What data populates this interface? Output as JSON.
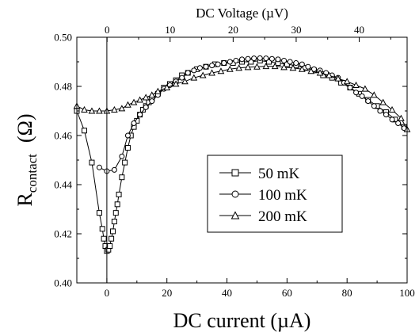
{
  "chart_data": {
    "type": "scatter",
    "xlabel": "DC current (µA)",
    "x2label": "DC Voltage (µV)",
    "ylabel_main": "R",
    "ylabel_sub": "contact",
    "ylabel_unit": "(Ω)",
    "xlim": [
      -10,
      100
    ],
    "x2lim": [
      -4.8,
      47.6
    ],
    "ylim": [
      0.4,
      0.5
    ],
    "x_ticks": [
      0,
      20,
      40,
      60,
      80,
      100
    ],
    "x_tick_labels": [
      "0",
      "20",
      "40",
      "60",
      "80",
      "100"
    ],
    "x2_ticks": [
      0,
      10,
      20,
      30,
      40
    ],
    "x2_tick_labels": [
      "0",
      "10",
      "20",
      "30",
      "40"
    ],
    "y_ticks": [
      0.4,
      0.42,
      0.44,
      0.46,
      0.48,
      0.5
    ],
    "y_tick_labels": [
      "0.40",
      "0.42",
      "0.44",
      "0.46",
      "0.48",
      "0.50"
    ],
    "zero_line_x": 0,
    "grid": false,
    "legend_position": "center",
    "series": [
      {
        "name": "50 mK",
        "marker": "square",
        "x": [
          -10,
          -7.5,
          -5,
          -2.5,
          -1.5,
          -1,
          -0.5,
          0,
          0.5,
          1,
          1.5,
          2,
          2.5,
          3,
          3.5,
          4,
          5,
          6,
          7,
          8,
          9,
          10,
          11,
          12,
          13,
          14,
          15,
          17,
          19,
          21,
          23,
          25,
          27,
          30,
          33,
          36,
          39,
          42,
          45,
          48,
          51,
          54,
          57,
          60,
          63,
          66,
          69,
          72,
          75,
          78,
          81,
          84,
          87,
          90,
          93,
          96,
          99
        ],
        "y": [
          0.47,
          0.462,
          0.449,
          0.4285,
          0.422,
          0.418,
          0.415,
          0.413,
          0.4135,
          0.415,
          0.418,
          0.421,
          0.425,
          0.4285,
          0.432,
          0.436,
          0.443,
          0.449,
          0.455,
          0.46,
          0.4635,
          0.466,
          0.4685,
          0.4705,
          0.472,
          0.4735,
          0.475,
          0.477,
          0.4795,
          0.481,
          0.4825,
          0.4845,
          0.4855,
          0.487,
          0.488,
          0.489,
          0.4895,
          0.4895,
          0.49,
          0.49,
          0.4905,
          0.49,
          0.4895,
          0.489,
          0.4885,
          0.4875,
          0.4865,
          0.4845,
          0.4835,
          0.4815,
          0.4795,
          0.477,
          0.4745,
          0.472,
          0.4695,
          0.4665,
          0.4635
        ]
      },
      {
        "name": "100 mK",
        "marker": "circle",
        "x": [
          -2.5,
          0,
          2.5,
          5,
          7,
          9,
          11,
          13,
          15,
          17,
          19,
          21,
          23,
          25,
          27,
          29,
          31,
          33,
          35,
          37,
          39,
          41,
          43,
          45,
          47,
          49,
          51,
          53,
          55,
          57,
          59,
          61,
          63,
          65,
          67,
          69,
          71,
          73,
          75,
          77,
          79,
          81,
          83,
          85,
          87,
          89,
          91,
          93,
          95,
          97,
          99
        ],
        "y": [
          0.447,
          0.4455,
          0.446,
          0.4515,
          0.46,
          0.465,
          0.4685,
          0.4715,
          0.474,
          0.4765,
          0.479,
          0.4805,
          0.482,
          0.4835,
          0.4855,
          0.4865,
          0.4875,
          0.488,
          0.4885,
          0.489,
          0.4895,
          0.49,
          0.4905,
          0.491,
          0.4912,
          0.4914,
          0.4915,
          0.4914,
          0.4912,
          0.491,
          0.4905,
          0.49,
          0.4895,
          0.489,
          0.488,
          0.487,
          0.4865,
          0.4855,
          0.4845,
          0.4835,
          0.4815,
          0.4795,
          0.4775,
          0.476,
          0.474,
          0.472,
          0.47,
          0.4685,
          0.4665,
          0.465,
          0.463
        ]
      },
      {
        "name": "200 mK",
        "marker": "triangle",
        "x": [
          -10,
          -7.5,
          -5,
          -2.5,
          0,
          2.5,
          5,
          7,
          9,
          11,
          13,
          15,
          17,
          20,
          23,
          26,
          29,
          32,
          35,
          38,
          41,
          44,
          47,
          50,
          53,
          56,
          59,
          62,
          65,
          68,
          71,
          74,
          77,
          80,
          83,
          86,
          89,
          92,
          95,
          98,
          100
        ],
        "y": [
          0.472,
          0.4705,
          0.47,
          0.47,
          0.47,
          0.4705,
          0.471,
          0.4725,
          0.4735,
          0.4745,
          0.4755,
          0.4765,
          0.478,
          0.4795,
          0.481,
          0.482,
          0.4835,
          0.4845,
          0.4855,
          0.4862,
          0.487,
          0.4875,
          0.4878,
          0.488,
          0.4882,
          0.4882,
          0.4878,
          0.4875,
          0.487,
          0.4862,
          0.4855,
          0.4845,
          0.4832,
          0.482,
          0.4805,
          0.479,
          0.4765,
          0.4735,
          0.4705,
          0.467,
          0.4625
        ]
      }
    ]
  }
}
